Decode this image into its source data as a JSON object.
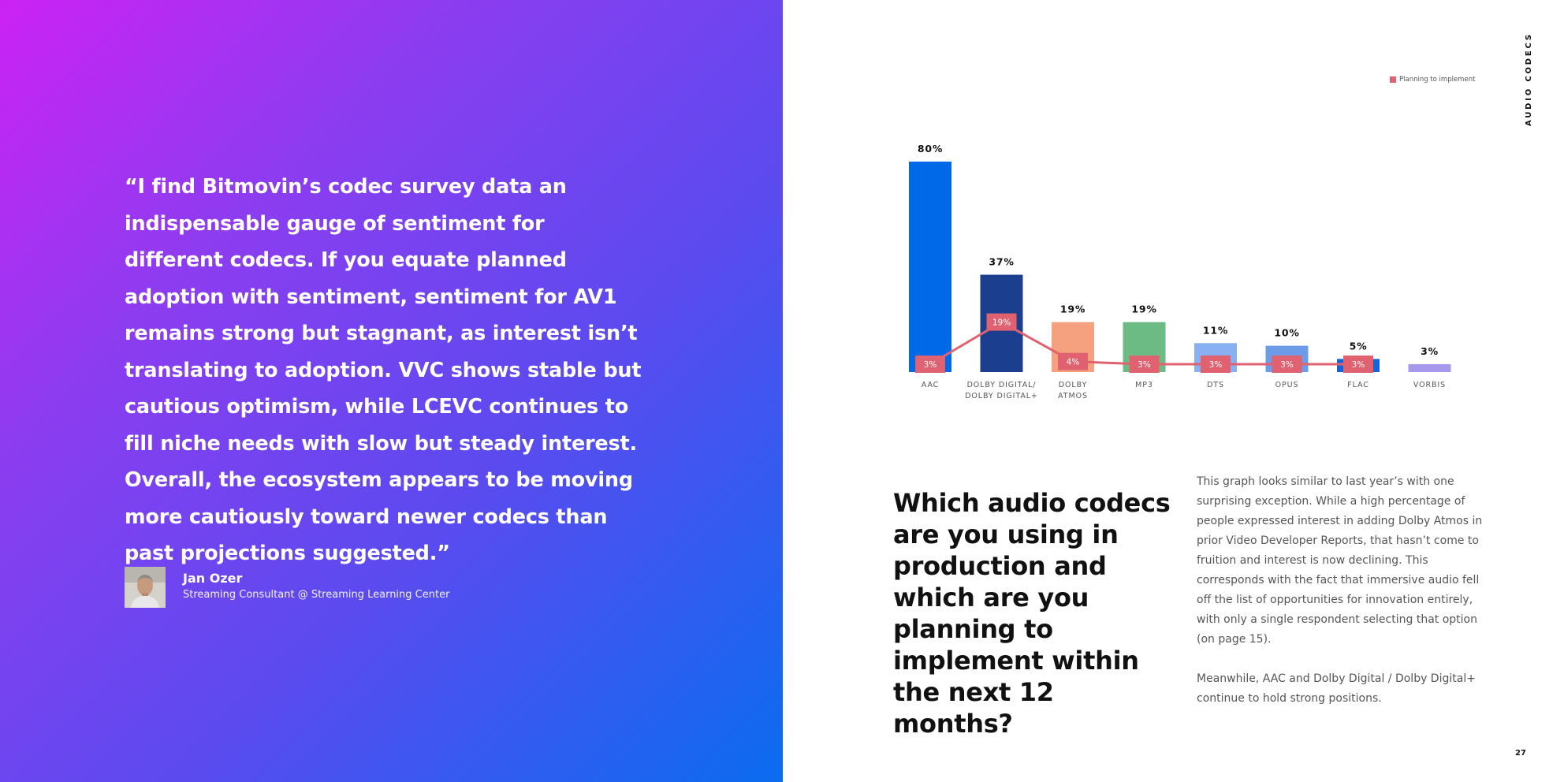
{
  "quote": {
    "text": "“I find Bitmovin’s codec survey data an indispensable gauge of sentiment for different codecs. If you equate planned adoption with sentiment, sentiment for AV1 remains strong but stagnant, as interest isn’t translating to adoption. VVC shows stable but cautious optimism, while LCEVC continues to fill niche needs with slow but steady interest. Overall, the ecosystem appears to be moving more cautiously toward newer codecs than past projections suggested.”",
    "author_name": "Jan Ozer",
    "author_title": "Streaming Consultant @ Streaming Learning Center"
  },
  "section_label": "AUDIO CODECS",
  "question": "Which audio codecs are you using in production and which are you planning to implement within the next 12 months?",
  "body": {
    "paragraph1": "This graph looks similar to last year’s with one surprising exception. While a high percentage of people expressed interest in adding Dolby Atmos in prior Video Developer Reports, that hasn’t come to fruition and interest is now declining. This corresponds with the fact that immersive audio fell off the list of opportunities for innovation entirely, with only a single respondent selecting that option (on page 15).",
    "paragraph2": "Meanwhile, AAC and Dolby Digital / Dolby Digital+ continue to hold strong positions."
  },
  "page_number": "27",
  "chart_data": {
    "type": "bar",
    "categories": [
      "AAC",
      "DOLBY DIGITAL/\nDOLBY DIGITAL+",
      "DOLBY\nATMOS",
      "MP3",
      "DTS",
      "OPUS",
      "FLAC",
      "VORBIS"
    ],
    "series": [
      {
        "type": "bar",
        "values": [
          80,
          37,
          19,
          19,
          11,
          10,
          5,
          3
        ],
        "labels": [
          "80%",
          "37%",
          "19%",
          "19%",
          "11%",
          "10%",
          "5%",
          "3%"
        ],
        "colors": [
          "#0069e8",
          "#1b3f8e",
          "#f5a07f",
          "#6dbb84",
          "#88b0f2",
          "#6c9be8",
          "#1563d6",
          "#a898ec"
        ]
      },
      {
        "name": "Planning to implement",
        "type": "line",
        "color": "#e06270",
        "values": [
          3,
          19,
          4,
          3,
          3,
          3,
          3,
          null
        ],
        "labels": [
          "3%",
          "19%",
          "4%",
          "3%",
          "3%",
          "3%",
          "3%",
          ""
        ]
      }
    ],
    "ylim": [
      0,
      80
    ],
    "legend": "top-right",
    "grid": false
  }
}
